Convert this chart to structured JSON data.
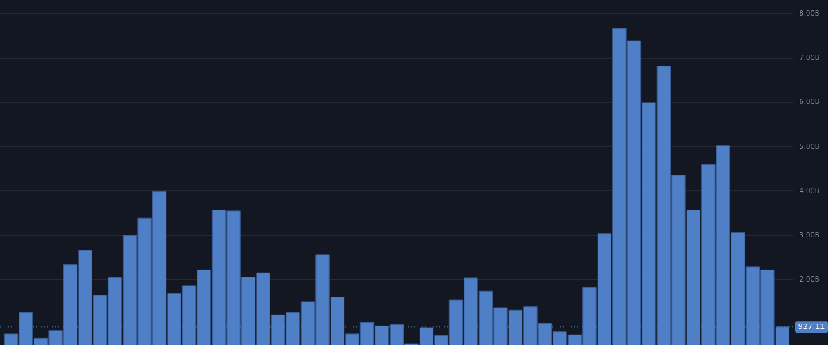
{
  "chart_data": {
    "type": "bar",
    "categories": [
      null,
      null,
      null,
      null,
      null,
      null,
      null,
      null,
      null,
      null,
      null,
      null,
      null,
      null,
      null,
      null,
      null,
      null,
      null,
      null,
      null,
      null,
      null,
      null,
      null,
      null,
      null,
      null,
      null,
      null,
      null,
      null,
      null,
      null,
      null,
      null,
      null,
      null,
      null,
      null,
      null,
      null,
      null,
      null,
      null,
      null,
      null,
      null,
      null,
      null,
      null,
      null,
      null
    ],
    "values": [
      0.77,
      1.26,
      0.67,
      0.85,
      2.33,
      2.65,
      1.64,
      2.04,
      2.99,
      3.38,
      3.98,
      1.68,
      1.86,
      2.21,
      3.56,
      3.54,
      2.05,
      2.15,
      1.2,
      1.26,
      1.5,
      2.56,
      1.6,
      0.77,
      1.03,
      0.95,
      0.98,
      0.55,
      0.91,
      0.73,
      1.53,
      2.03,
      1.73,
      1.36,
      1.31,
      1.38,
      1.01,
      0.82,
      0.75,
      1.82,
      3.03,
      7.66,
      7.38,
      5.98,
      6.81,
      4.35,
      3.56,
      4.59,
      5.02,
      3.06,
      2.28,
      2.21,
      0.92711
    ],
    "color": "#4f7fc6",
    "ylim": [
      0.52,
      8.3
    ],
    "yticks": [
      {
        "value": 1,
        "label": null
      },
      {
        "value": 2,
        "label": "2.00B"
      },
      {
        "value": 3,
        "label": "3.00B"
      },
      {
        "value": 4,
        "label": "4.00B"
      },
      {
        "value": 5,
        "label": "5.00B"
      },
      {
        "value": 6,
        "label": "6.00B"
      },
      {
        "value": 7,
        "label": "7.00B"
      },
      {
        "value": 8,
        "label": "8.00B"
      }
    ],
    "grid": "y",
    "tick_labels": "y",
    "ref_lines": [
      {
        "axis": "y",
        "value": 0.92711,
        "label": "927.11",
        "color": "#4f7fc6",
        "line_style": "dotted"
      }
    ]
  }
}
